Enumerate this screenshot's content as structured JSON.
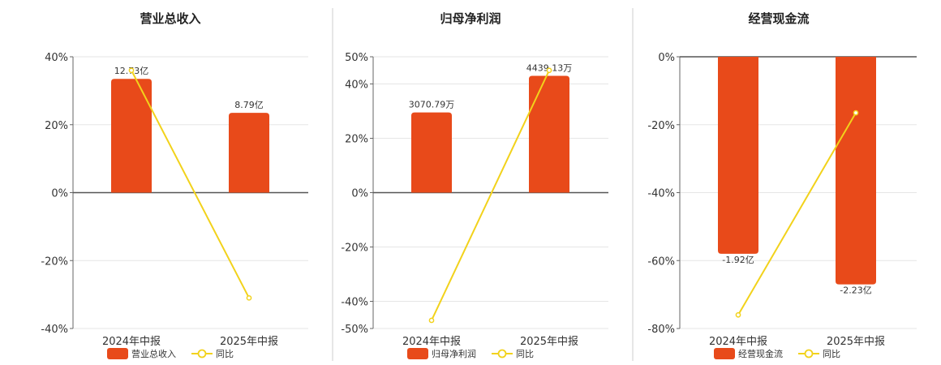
{
  "colors": {
    "bar": "#E84A1A",
    "line": "#F2D21B",
    "divider": "#cccccc",
    "grid": "#e6e6e6",
    "axis": "#666666"
  },
  "chart_data": [
    {
      "type": "bar",
      "title": "营业总收入",
      "categories": [
        "2024年中报",
        "2025年中报"
      ],
      "series": [
        {
          "name": "营业总收入",
          "type": "bar",
          "axis_values": [
            33.5,
            23.5
          ],
          "labels": [
            "12.73亿",
            "8.79亿"
          ]
        },
        {
          "name": "同比",
          "type": "line",
          "values": [
            36,
            -31
          ]
        }
      ],
      "ylim": [
        -40,
        40
      ],
      "yticks": [
        -40,
        -20,
        0,
        20,
        40
      ],
      "ytick_labels": [
        "-40%",
        "-20%",
        "0%",
        "20%",
        "40%"
      ],
      "grid": true,
      "legend": "bottom"
    },
    {
      "type": "bar",
      "title": "归母净利润",
      "categories": [
        "2024年中报",
        "2025年中报"
      ],
      "series": [
        {
          "name": "归母净利润",
          "type": "bar",
          "axis_values": [
            29.5,
            43
          ],
          "labels": [
            "3070.79万",
            "4439.13万"
          ]
        },
        {
          "name": "同比",
          "type": "line",
          "values": [
            -47,
            45
          ]
        }
      ],
      "ylim": [
        -50,
        50
      ],
      "yticks": [
        -50,
        -40,
        -20,
        0,
        20,
        40,
        50
      ],
      "ytick_labels": [
        "-50%",
        "-40%",
        "-20%",
        "0%",
        "20%",
        "40%",
        "50%"
      ],
      "grid": true,
      "legend": "bottom"
    },
    {
      "type": "bar",
      "title": "经营现金流",
      "categories": [
        "2024年中报",
        "2025年中报"
      ],
      "series": [
        {
          "name": "经营现金流",
          "type": "bar",
          "axis_values": [
            -58,
            -67
          ],
          "labels": [
            "-1.92亿",
            "-2.23亿"
          ]
        },
        {
          "name": "同比",
          "type": "line",
          "values": [
            -76,
            -16.5
          ]
        }
      ],
      "ylim": [
        -80,
        0
      ],
      "yticks": [
        -80,
        -60,
        -40,
        -20,
        0
      ],
      "ytick_labels": [
        "-80%",
        "-60%",
        "-40%",
        "-20%",
        "0%"
      ],
      "grid": true,
      "legend": "bottom"
    }
  ]
}
